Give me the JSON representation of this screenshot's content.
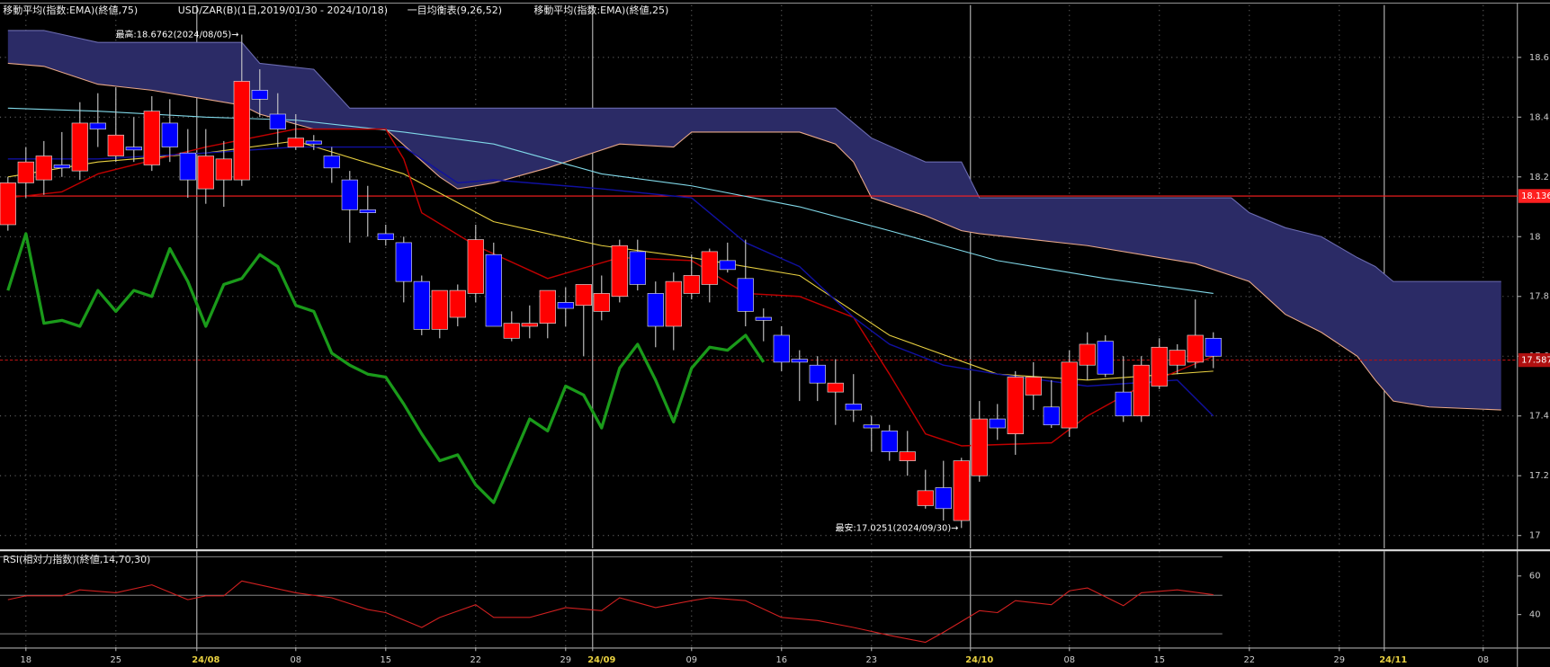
{
  "chart_data": {
    "type": "candlestick",
    "headers": [
      "移動平均(指数:EMA)(終値,75)",
      "USD/ZAR(B)(1日,2019/01/30 - 2024/10/18)",
      "一目均衡表(9,26,52)",
      "移動平均(指数:EMA)(終値,25)"
    ],
    "ylim": [
      16.957,
      18.775
    ],
    "yticks": [
      17.0,
      17.2,
      17.4,
      17.6,
      17.8,
      18.0,
      18.2,
      18.4,
      18.6
    ],
    "xlim": [
      -0.44,
      83.9
    ],
    "xticks": [
      {
        "value": 1,
        "label": "18"
      },
      {
        "value": 6,
        "label": "25"
      },
      {
        "value": 11,
        "label": "24/08"
      },
      {
        "value": 16,
        "label": "08"
      },
      {
        "value": 21,
        "label": "15"
      },
      {
        "value": 26,
        "label": "22"
      },
      {
        "value": 31,
        "label": "29"
      },
      {
        "value": 33,
        "label": "24/09"
      },
      {
        "value": 38,
        "label": "09"
      },
      {
        "value": 43,
        "label": "16"
      },
      {
        "value": 48,
        "label": "23"
      },
      {
        "value": 54,
        "label": "24/10"
      },
      {
        "value": 59,
        "label": "08"
      },
      {
        "value": 64,
        "label": "15"
      },
      {
        "value": 69,
        "label": "22"
      },
      {
        "value": 74,
        "label": "29"
      },
      {
        "value": 77,
        "label": "24/11"
      },
      {
        "value": 82,
        "label": "08"
      }
    ],
    "grid": true,
    "candles": {
      "up_color": "#ff0000",
      "down_color": "#0000ff",
      "open": [
        18.04,
        18.18,
        18.19,
        18.24,
        18.22,
        18.38,
        18.27,
        18.3,
        18.24,
        18.38,
        18.28,
        18.16,
        18.19,
        18.19,
        18.49,
        18.41,
        18.3,
        18.32,
        18.27,
        18.19,
        18.09,
        18.01,
        17.98,
        17.85,
        17.69,
        17.73,
        17.81,
        17.94,
        17.66,
        17.7,
        17.71,
        17.78,
        17.77,
        17.75,
        17.8,
        17.95,
        17.81,
        17.7,
        17.81,
        17.84,
        17.92,
        17.86,
        17.73,
        17.67,
        17.59,
        17.57,
        17.48,
        17.44,
        17.37,
        17.35,
        17.25,
        17.1,
        17.16,
        17.05,
        17.2,
        17.39,
        17.34,
        17.47,
        17.43,
        17.36,
        17.57,
        17.65,
        17.48,
        17.4,
        17.5,
        17.57,
        17.58,
        17.66
      ],
      "high": [
        18.2,
        18.3,
        18.32,
        18.35,
        18.45,
        18.48,
        18.5,
        18.4,
        18.47,
        18.46,
        18.36,
        18.36,
        18.32,
        18.6762,
        18.56,
        18.48,
        18.41,
        18.34,
        18.3,
        18.22,
        18.17,
        18.04,
        18.0,
        17.87,
        17.82,
        17.84,
        18.04,
        17.98,
        17.75,
        17.77,
        17.82,
        17.83,
        17.84,
        17.87,
        17.99,
        17.99,
        17.85,
        17.88,
        17.94,
        17.96,
        17.98,
        17.99,
        17.76,
        17.7,
        17.62,
        17.6,
        17.59,
        17.54,
        17.4,
        17.37,
        17.35,
        17.22,
        17.25,
        17.26,
        17.45,
        17.44,
        17.55,
        17.58,
        17.52,
        17.62,
        17.68,
        17.67,
        17.6,
        17.6,
        17.66,
        17.64,
        17.79,
        17.68
      ],
      "low": [
        18.02,
        18.13,
        18.14,
        18.2,
        18.19,
        18.3,
        18.25,
        18.25,
        18.22,
        18.25,
        18.13,
        18.11,
        18.1,
        18.17,
        18.4,
        18.3,
        18.29,
        18.29,
        18.18,
        17.98,
        18.0,
        17.97,
        17.78,
        17.67,
        17.66,
        17.7,
        17.78,
        17.7,
        17.65,
        17.66,
        17.66,
        17.7,
        17.6,
        17.72,
        17.78,
        17.82,
        17.63,
        17.62,
        17.79,
        17.78,
        17.88,
        17.7,
        17.65,
        17.55,
        17.45,
        17.45,
        17.37,
        17.38,
        17.28,
        17.25,
        17.2,
        17.09,
        17.05,
        17.0251,
        17.18,
        17.32,
        17.27,
        17.42,
        17.36,
        17.33,
        17.52,
        17.53,
        17.38,
        17.38,
        17.49,
        17.54,
        17.56,
        17.56
      ],
      "close": [
        18.18,
        18.25,
        18.27,
        18.23,
        18.38,
        18.36,
        18.34,
        18.29,
        18.42,
        18.3,
        18.19,
        18.27,
        18.26,
        18.52,
        18.46,
        18.36,
        18.33,
        18.31,
        18.23,
        18.09,
        18.08,
        17.99,
        17.85,
        17.69,
        17.82,
        17.82,
        17.99,
        17.7,
        17.71,
        17.71,
        17.82,
        17.76,
        17.84,
        17.81,
        17.97,
        17.84,
        17.7,
        17.85,
        17.87,
        17.95,
        17.89,
        17.75,
        17.72,
        17.58,
        17.58,
        17.51,
        17.51,
        17.42,
        17.36,
        17.28,
        17.28,
        17.15,
        17.09,
        17.25,
        17.39,
        17.36,
        17.53,
        17.53,
        17.37,
        17.58,
        17.64,
        17.54,
        17.4,
        17.57,
        17.63,
        17.62,
        17.67,
        17.6
      ]
    },
    "cloud": {
      "fill": "#2b2b66",
      "x": [
        0,
        2,
        5,
        8,
        11,
        13,
        14,
        17,
        19,
        21,
        24,
        25,
        27,
        30,
        34,
        37,
        38,
        44,
        46,
        47,
        48,
        51,
        53,
        54,
        60,
        66,
        68,
        69,
        71,
        73,
        75,
        76,
        77,
        79,
        83
      ],
      "span_a": {
        "color": "#e8a888",
        "values": [
          18.58,
          18.57,
          18.51,
          18.49,
          18.46,
          18.44,
          18.41,
          18.36,
          18.36,
          18.36,
          18.2,
          18.16,
          18.18,
          18.23,
          18.31,
          18.3,
          18.35,
          18.35,
          18.31,
          18.25,
          18.13,
          18.07,
          18.02,
          18.01,
          17.97,
          17.91,
          17.87,
          17.85,
          17.74,
          17.68,
          17.6,
          17.52,
          17.45,
          17.43,
          17.42
        ]
      },
      "span_b": {
        "color": "#6b6bb0",
        "values": [
          18.69,
          18.69,
          18.65,
          18.65,
          18.65,
          18.65,
          18.58,
          18.56,
          18.43,
          18.43,
          18.43,
          18.43,
          18.43,
          18.43,
          18.43,
          18.43,
          18.43,
          18.43,
          18.43,
          18.38,
          18.33,
          18.25,
          18.25,
          18.13,
          18.13,
          18.13,
          18.13,
          18.08,
          18.03,
          18.0,
          17.93,
          17.9,
          17.85,
          17.85,
          17.85
        ]
      }
    },
    "lines": [
      {
        "color": "#80d8e8",
        "width": 1,
        "x": [
          0,
          5,
          11,
          16,
          22,
          27,
          33,
          38,
          44,
          49,
          55,
          61,
          67
        ],
        "values": [
          18.43,
          18.42,
          18.4,
          18.39,
          18.35,
          18.31,
          18.21,
          18.17,
          18.1,
          18.02,
          17.92,
          17.86,
          17.81
        ]
      },
      {
        "color": "#e8d040",
        "width": 1,
        "x": [
          0,
          5,
          11,
          16,
          22,
          27,
          33,
          38,
          44,
          49,
          55,
          60,
          67
        ],
        "values": [
          18.2,
          18.25,
          18.28,
          18.32,
          18.21,
          18.05,
          17.97,
          17.93,
          17.87,
          17.67,
          17.54,
          17.52,
          17.55
        ]
      },
      {
        "color": "#c00000",
        "width": 1.3,
        "x": [
          0,
          3,
          5,
          11,
          16,
          21,
          22,
          23,
          26,
          30,
          34,
          38,
          41,
          44,
          47,
          49,
          51,
          53,
          58,
          60,
          63,
          67
        ],
        "values": [
          18.13,
          18.15,
          18.21,
          18.3,
          18.36,
          18.36,
          18.26,
          18.08,
          17.97,
          17.86,
          17.93,
          17.92,
          17.81,
          17.8,
          17.73,
          17.54,
          17.34,
          17.3,
          17.31,
          17.4,
          17.5,
          17.6
        ]
      },
      {
        "color": "#1010a0",
        "width": 1.3,
        "x": [
          0,
          5,
          11,
          16,
          22,
          25,
          27,
          33,
          38,
          41,
          44,
          47,
          49,
          52,
          55,
          60,
          65,
          67
        ],
        "values": [
          18.26,
          18.26,
          18.28,
          18.3,
          18.3,
          18.18,
          18.19,
          18.16,
          18.13,
          17.98,
          17.9,
          17.73,
          17.64,
          17.57,
          17.54,
          17.5,
          17.52,
          17.4
        ]
      },
      {
        "color": "#1a9a1a",
        "width": 3,
        "x": [
          0,
          1,
          2,
          3,
          4,
          5,
          6,
          7,
          8,
          9,
          10,
          11,
          12,
          13,
          14,
          15,
          16,
          17,
          18,
          19,
          20,
          21,
          22,
          23,
          24,
          25,
          26,
          27,
          28,
          29,
          30,
          31,
          32,
          33,
          34,
          35,
          36,
          37,
          38,
          39,
          40,
          41,
          42
        ],
        "values": [
          17.82,
          18.01,
          17.71,
          17.72,
          17.7,
          17.82,
          17.75,
          17.82,
          17.8,
          17.96,
          17.85,
          17.7,
          17.84,
          17.86,
          17.94,
          17.9,
          17.77,
          17.75,
          17.61,
          17.57,
          17.54,
          17.53,
          17.44,
          17.34,
          17.25,
          17.27,
          17.17,
          17.11,
          17.25,
          17.39,
          17.35,
          17.5,
          17.47,
          17.36,
          17.56,
          17.64,
          17.52,
          17.38,
          17.56,
          17.63,
          17.62,
          17.67,
          17.58
        ]
      }
    ],
    "price_lines": [
      {
        "value": 18.136,
        "label": "18.136",
        "color": "#ff2020",
        "style": "solid"
      },
      {
        "value": 17.587,
        "label": "17.587",
        "color": "#b01010",
        "style": "dashed"
      }
    ],
    "annotations": [
      {
        "text": "最高:18.6762(2024/08/05)→",
        "candle": 13,
        "at": "high"
      },
      {
        "text": "最安:17.0251(2024/09/30)→",
        "candle": 53,
        "at": "low"
      }
    ],
    "rsi": {
      "title": "RSI(相対力指数)(終値,14,70,30)",
      "color": "#d02020",
      "ylim": [
        23.1,
        72.8
      ],
      "yticks": [
        40,
        60
      ],
      "levels": [
        70,
        50,
        30
      ],
      "x": [
        0,
        1,
        3,
        4,
        6,
        8,
        10,
        11,
        12,
        13,
        16,
        18,
        20,
        21,
        23,
        24,
        26,
        27,
        29,
        31,
        33,
        34,
        36,
        38,
        39,
        41,
        43,
        45,
        47,
        49,
        51,
        52,
        54,
        55,
        56,
        58,
        59,
        60,
        62,
        63,
        65,
        67
      ],
      "values": [
        47.7,
        49.7,
        49.7,
        52.8,
        51.3,
        55.4,
        47.7,
        49.7,
        49.7,
        57.4,
        51.3,
        48.7,
        42.6,
        41.0,
        33.3,
        38.5,
        45.1,
        38.5,
        38.5,
        43.6,
        42.0,
        48.7,
        43.6,
        47.2,
        48.7,
        47.2,
        38.5,
        36.9,
        33.3,
        29.2,
        25.6,
        30.8,
        42.0,
        41.0,
        47.2,
        45.1,
        52.3,
        53.8,
        44.6,
        51.3,
        52.8,
        50.3
      ]
    }
  }
}
